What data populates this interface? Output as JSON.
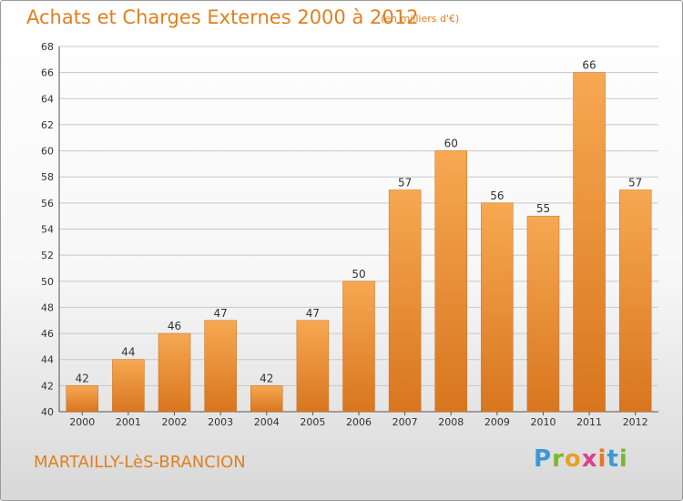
{
  "header": {
    "title": "Achats et Charges Externes 2000 à 2012",
    "subtitle": "(en milliers d'€)"
  },
  "footer": {
    "commune": "MARTAILLY-LèS-BRANCION"
  },
  "logo": {
    "text": "Proxiti",
    "letter_colors": [
      "#3a9ad9",
      "#7ab829",
      "#e9a11f",
      "#e03c8a",
      "#e87722",
      "#3a9ad9",
      "#7ab829"
    ]
  },
  "colors": {
    "accent": "#e0801f",
    "bar_light": "#f7a852",
    "bar_dark": "#d8761f",
    "grid": "#c8c8c8"
  },
  "chart_data": {
    "type": "bar",
    "title": "Achats et Charges Externes 2000 à 2012",
    "subtitle": "(en milliers d'€)",
    "categories": [
      "2000",
      "2001",
      "2002",
      "2003",
      "2004",
      "2005",
      "2006",
      "2007",
      "2008",
      "2009",
      "2010",
      "2011",
      "2012"
    ],
    "values": [
      42,
      44,
      46,
      47,
      42,
      47,
      50,
      57,
      60,
      56,
      55,
      66,
      57
    ],
    "ylim": [
      40,
      68
    ],
    "yticks": [
      40,
      42,
      44,
      46,
      48,
      50,
      52,
      54,
      56,
      58,
      60,
      62,
      64,
      66,
      68
    ],
    "grid": true,
    "legend": "none"
  }
}
